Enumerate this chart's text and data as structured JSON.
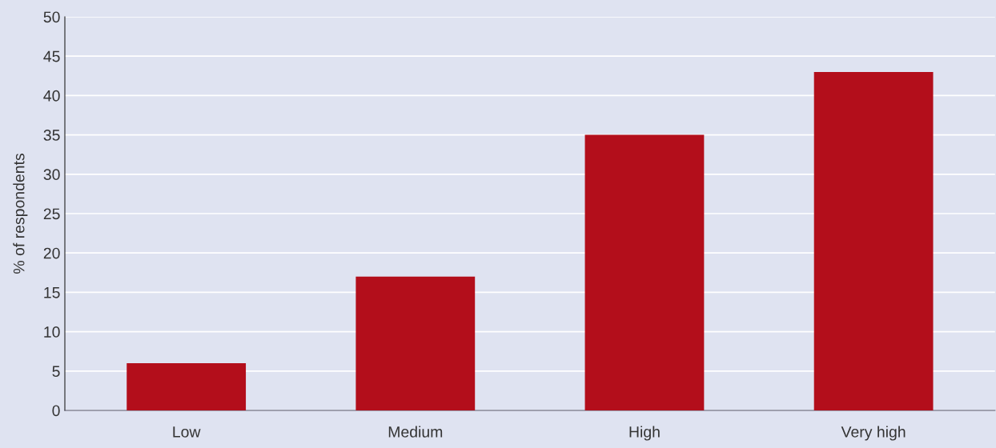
{
  "chart_data": {
    "type": "bar",
    "ylabel": "% of respondents",
    "categories": [
      "Low",
      "Medium",
      "High",
      "Very high"
    ],
    "values": [
      6,
      17,
      35,
      43
    ],
    "color": "#b30e1b",
    "ylim": [
      0,
      50
    ],
    "yticks": [
      0,
      5,
      10,
      15,
      20,
      25,
      30,
      35,
      40,
      45,
      50
    ],
    "grid": "y"
  }
}
